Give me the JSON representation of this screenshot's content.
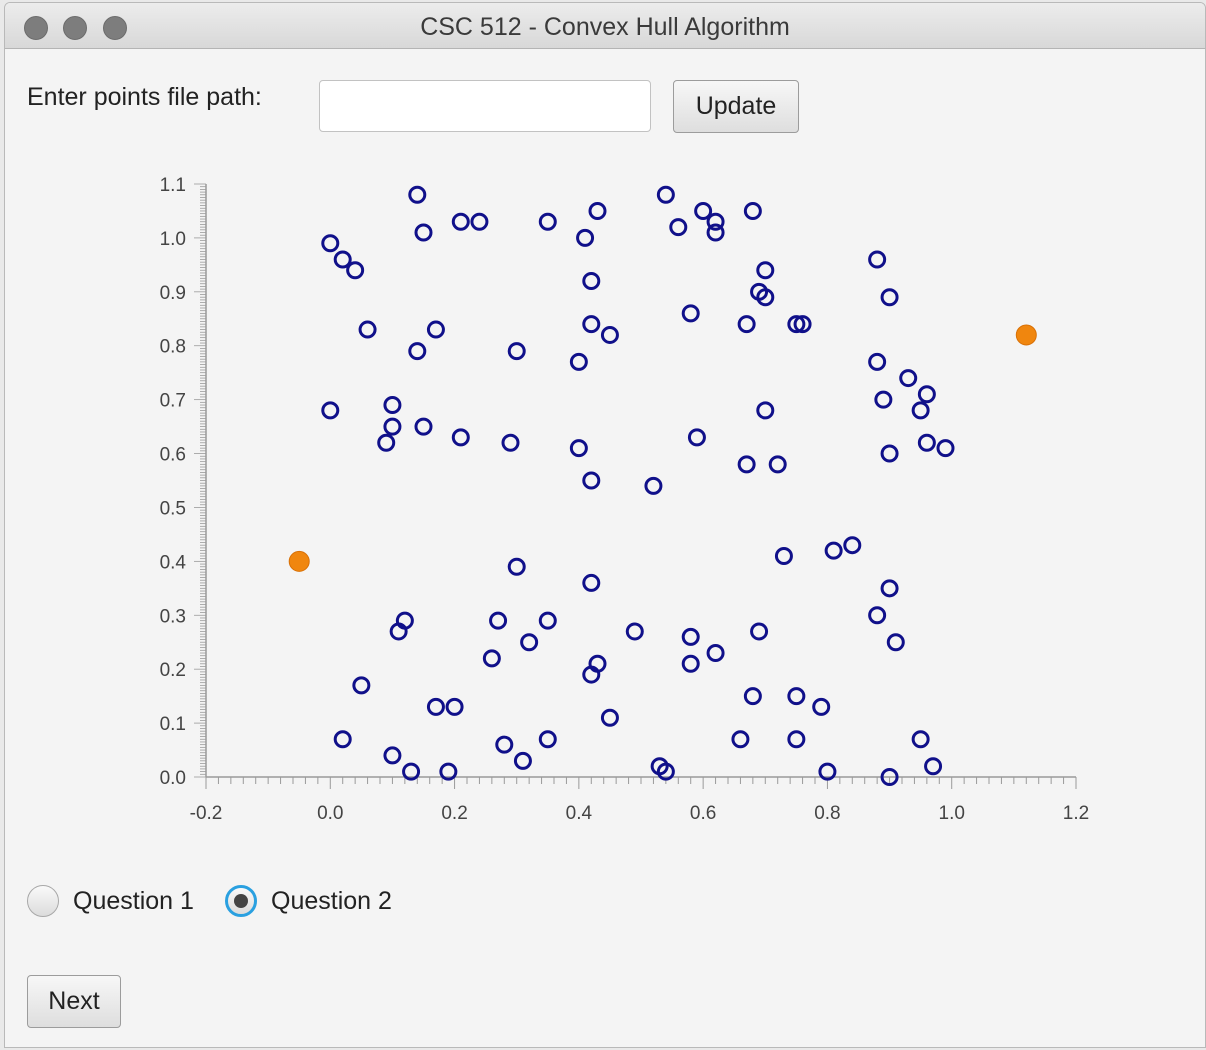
{
  "window": {
    "title": "CSC 512 - Convex Hull Algorithm"
  },
  "form": {
    "path_label": "Enter points file path:",
    "path_value": "",
    "update_label": "Update"
  },
  "options": {
    "q1_label": "Question 1",
    "q2_label": "Question 2",
    "selected": "Question 2"
  },
  "footer": {
    "next_label": "Next"
  },
  "colors": {
    "point_stroke": "#10108a",
    "hull_point": "#f0860e"
  },
  "chart_data": {
    "type": "scatter",
    "xlim": [
      -0.2,
      1.2
    ],
    "ylim": [
      0.0,
      1.1
    ],
    "x_ticks": [
      "-0.2",
      "0.0",
      "0.2",
      "0.4",
      "0.6",
      "0.8",
      "1.0",
      "1.2"
    ],
    "y_ticks": [
      "0.0",
      "0.1",
      "0.2",
      "0.3",
      "0.4",
      "0.5",
      "0.6",
      "0.7",
      "0.8",
      "0.9",
      "1.0",
      "1.1"
    ],
    "grid": false,
    "series": [
      {
        "marker": "hollow-circle",
        "points": [
          [
            0.14,
            1.08
          ],
          [
            0.43,
            1.05
          ],
          [
            0.54,
            1.08
          ],
          [
            0.6,
            1.05
          ],
          [
            0.62,
            1.03
          ],
          [
            0.68,
            1.05
          ],
          [
            0.21,
            1.03
          ],
          [
            0.24,
            1.03
          ],
          [
            0.35,
            1.03
          ],
          [
            0.56,
            1.02
          ],
          [
            0.62,
            1.01
          ],
          [
            0.15,
            1.01
          ],
          [
            0.41,
            1.0
          ],
          [
            0.0,
            0.99
          ],
          [
            0.02,
            0.96
          ],
          [
            0.04,
            0.94
          ],
          [
            0.88,
            0.96
          ],
          [
            0.7,
            0.94
          ],
          [
            0.42,
            0.92
          ],
          [
            0.69,
            0.9
          ],
          [
            0.7,
            0.89
          ],
          [
            0.9,
            0.89
          ],
          [
            0.58,
            0.86
          ],
          [
            0.75,
            0.84
          ],
          [
            0.76,
            0.84
          ],
          [
            0.06,
            0.83
          ],
          [
            0.17,
            0.83
          ],
          [
            0.42,
            0.84
          ],
          [
            0.45,
            0.82
          ],
          [
            0.67,
            0.84
          ],
          [
            0.14,
            0.79
          ],
          [
            0.3,
            0.79
          ],
          [
            0.4,
            0.77
          ],
          [
            0.88,
            0.77
          ],
          [
            0.93,
            0.74
          ],
          [
            0.96,
            0.71
          ],
          [
            0.0,
            0.68
          ],
          [
            0.1,
            0.69
          ],
          [
            0.89,
            0.7
          ],
          [
            0.95,
            0.68
          ],
          [
            0.7,
            0.68
          ],
          [
            0.1,
            0.65
          ],
          [
            0.15,
            0.65
          ],
          [
            0.09,
            0.62
          ],
          [
            0.21,
            0.63
          ],
          [
            0.29,
            0.62
          ],
          [
            0.4,
            0.61
          ],
          [
            0.59,
            0.63
          ],
          [
            0.96,
            0.62
          ],
          [
            0.99,
            0.61
          ],
          [
            0.9,
            0.6
          ],
          [
            0.67,
            0.58
          ],
          [
            0.72,
            0.58
          ],
          [
            0.42,
            0.55
          ],
          [
            0.52,
            0.54
          ],
          [
            0.81,
            0.42
          ],
          [
            0.84,
            0.43
          ],
          [
            0.73,
            0.41
          ],
          [
            0.3,
            0.39
          ],
          [
            0.42,
            0.36
          ],
          [
            0.9,
            0.35
          ],
          [
            0.88,
            0.3
          ],
          [
            0.12,
            0.29
          ],
          [
            0.11,
            0.27
          ],
          [
            0.27,
            0.29
          ],
          [
            0.35,
            0.29
          ],
          [
            0.49,
            0.27
          ],
          [
            0.58,
            0.26
          ],
          [
            0.69,
            0.27
          ],
          [
            0.32,
            0.25
          ],
          [
            0.91,
            0.25
          ],
          [
            0.26,
            0.22
          ],
          [
            0.62,
            0.23
          ],
          [
            0.43,
            0.21
          ],
          [
            0.58,
            0.21
          ],
          [
            0.42,
            0.19
          ],
          [
            0.05,
            0.17
          ],
          [
            0.68,
            0.15
          ],
          [
            0.75,
            0.15
          ],
          [
            0.79,
            0.13
          ],
          [
            0.17,
            0.13
          ],
          [
            0.2,
            0.13
          ],
          [
            0.45,
            0.11
          ],
          [
            0.02,
            0.07
          ],
          [
            0.28,
            0.06
          ],
          [
            0.35,
            0.07
          ],
          [
            0.66,
            0.07
          ],
          [
            0.75,
            0.07
          ],
          [
            0.95,
            0.07
          ],
          [
            0.1,
            0.04
          ],
          [
            0.31,
            0.03
          ],
          [
            0.13,
            0.01
          ],
          [
            0.19,
            0.01
          ],
          [
            0.53,
            0.02
          ],
          [
            0.54,
            0.01
          ],
          [
            0.8,
            0.01
          ],
          [
            0.9,
            0.0
          ],
          [
            0.97,
            0.02
          ]
        ]
      },
      {
        "marker": "filled-circle",
        "points": [
          [
            1.12,
            0.82
          ],
          [
            -0.05,
            0.4
          ]
        ]
      }
    ]
  }
}
